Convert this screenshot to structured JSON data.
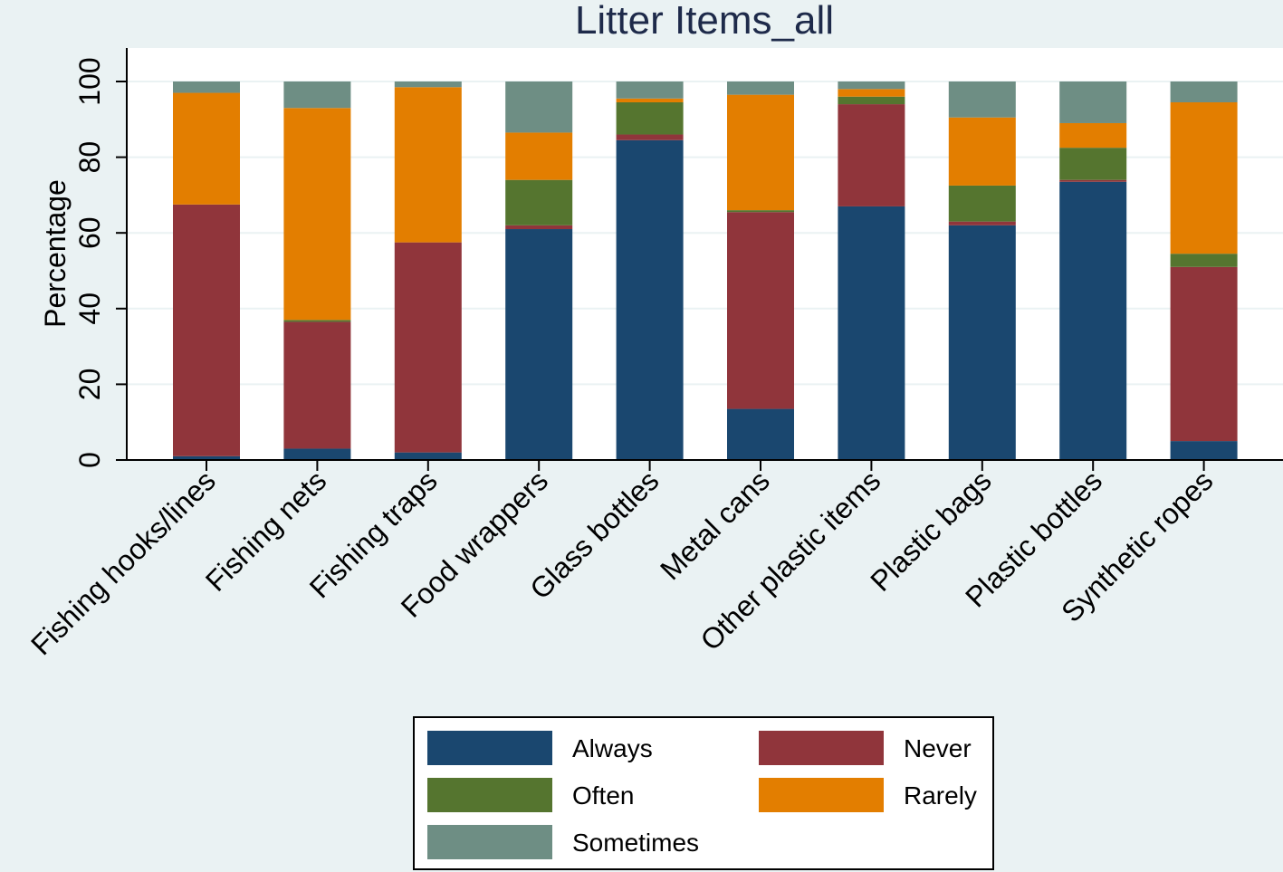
{
  "chart_data": {
    "type": "bar",
    "stacked": true,
    "title": "Litter Items_all",
    "ylabel": "Percentage",
    "xlabel": "",
    "ylim": [
      0,
      100
    ],
    "yticks": [
      0,
      20,
      40,
      60,
      80,
      100
    ],
    "grid": true,
    "legend_position": "bottom",
    "categories": [
      "Fishing hooks/lines",
      "Fishing nets",
      "Fishing traps",
      "Food wrappers",
      "Glass bottles",
      "Metal cans",
      "Other plastic items",
      "Plastic bags",
      "Plastic bottles",
      "Synthetic ropes"
    ],
    "series": [
      {
        "name": "Always",
        "color": "#1a476f",
        "values": [
          1,
          3,
          2,
          61,
          84.5,
          13.5,
          67,
          62,
          73.5,
          5
        ]
      },
      {
        "name": "Never",
        "color": "#90353b",
        "values": [
          66.5,
          33.5,
          55.5,
          1,
          1.5,
          52,
          27,
          1,
          0.5,
          46
        ]
      },
      {
        "name": "Often",
        "color": "#55752f",
        "values": [
          0,
          0.5,
          0,
          12,
          8.5,
          0.5,
          2,
          9.5,
          8.5,
          3.5
        ]
      },
      {
        "name": "Rarely",
        "color": "#e37e00",
        "values": [
          29.5,
          56,
          41,
          12.5,
          1,
          30.5,
          2,
          18,
          6.5,
          40
        ]
      },
      {
        "name": "Sometimes",
        "color": "#6e8e84",
        "values": [
          3,
          7,
          1.5,
          13.5,
          4.5,
          3.5,
          2,
          9.5,
          11,
          5.5
        ]
      }
    ]
  },
  "legend": {
    "items": [
      {
        "label": "Always",
        "color": "#1a476f"
      },
      {
        "label": "Never",
        "color": "#90353b"
      },
      {
        "label": "Often",
        "color": "#55752f"
      },
      {
        "label": "Rarely",
        "color": "#e37e00"
      },
      {
        "label": "Sometimes",
        "color": "#6e8e84"
      }
    ]
  }
}
